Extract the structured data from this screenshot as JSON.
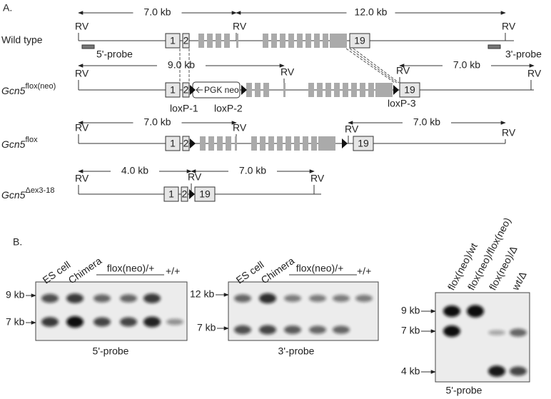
{
  "panel_a": {
    "label": "A.",
    "rows": [
      {
        "name": "Wild type",
        "distances": [
          "7.0 kb",
          "12.0 kb"
        ],
        "sites": [
          "RV",
          "RV",
          "RV"
        ],
        "exons": [
          "1",
          "2",
          "19"
        ],
        "probes": [
          "5'-probe",
          "3'-probe"
        ]
      },
      {
        "gene": "Gcn5",
        "allele": "flox(neo)",
        "distances": [
          "9.0 kb",
          "7.0 kb"
        ],
        "sites": [
          "RV",
          "RV",
          "RV",
          "RV"
        ],
        "exons": [
          "1",
          "2",
          "19"
        ],
        "cassette": "PGK neo",
        "loxp": [
          "loxP-1",
          "loxP-2",
          "loxP-3"
        ]
      },
      {
        "gene": "Gcn5",
        "allele": "flox",
        "distances": [
          "7.0 kb",
          "7.0 kb"
        ],
        "sites": [
          "RV",
          "RV",
          "RV",
          "RV"
        ],
        "exons": [
          "1",
          "2",
          "19"
        ]
      },
      {
        "gene": "Gcn5",
        "allele": "Δex3-18",
        "distances": [
          "4.0 kb",
          "7.0 kb"
        ],
        "sites": [
          "RV",
          "RV",
          "RV"
        ],
        "exons": [
          "1",
          "2",
          "19"
        ]
      }
    ]
  },
  "panel_b": {
    "label": "B.",
    "blots": [
      {
        "lanes": [
          "ES cell",
          "Chimera",
          "flox(neo)/+",
          "+/+"
        ],
        "sizes": [
          "9 kb",
          "7 kb"
        ],
        "probe": "5'-probe"
      },
      {
        "lanes": [
          "ES cell",
          "Chimera",
          "flox(neo)/+",
          "+/+"
        ],
        "sizes": [
          "12 kb",
          "7 kb"
        ],
        "probe": "3'-probe"
      },
      {
        "lanes": [
          "flox(neo)/wt",
          "flox(neo)/flox(neo)",
          "flox(neo)/Δ",
          "wt/Δ"
        ],
        "sizes": [
          "9 kb",
          "7 kb",
          "4 kb"
        ],
        "probe": "5'-probe"
      }
    ]
  }
}
